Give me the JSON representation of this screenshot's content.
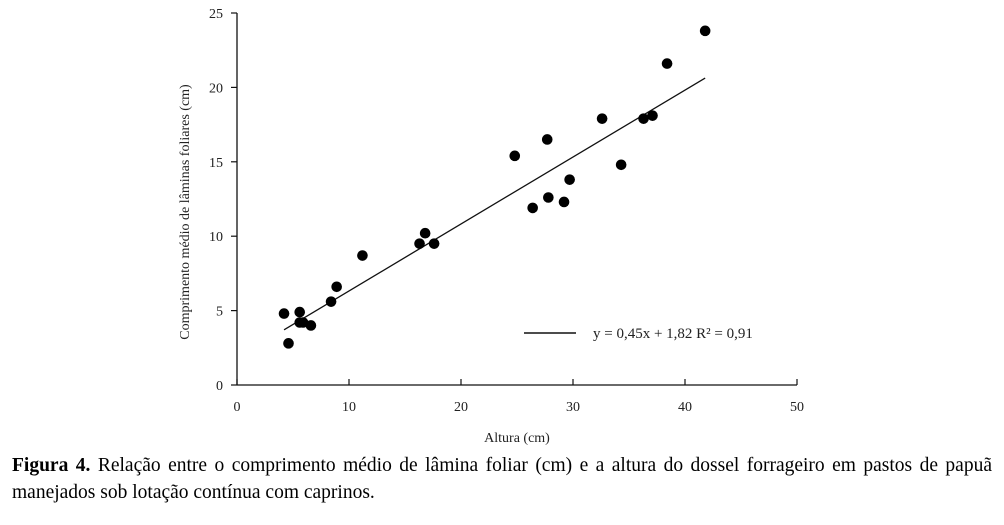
{
  "chart_data": {
    "type": "scatter",
    "xlabel": "Altura (cm)",
    "ylabel": "Comprimento médio de lâminas foliares (cm)",
    "xlim": [
      0,
      50
    ],
    "ylim": [
      0,
      25
    ],
    "xticks": [
      0,
      10,
      20,
      30,
      40,
      50
    ],
    "yticks": [
      0,
      5,
      10,
      15,
      20,
      25
    ],
    "grid": false,
    "legend_position": "bottom-right",
    "points": [
      {
        "x": 4.2,
        "y": 4.8
      },
      {
        "x": 4.6,
        "y": 2.8
      },
      {
        "x": 5.6,
        "y": 4.9
      },
      {
        "x": 5.6,
        "y": 4.2
      },
      {
        "x": 5.9,
        "y": 4.2
      },
      {
        "x": 6.6,
        "y": 4.0
      },
      {
        "x": 8.4,
        "y": 5.6
      },
      {
        "x": 8.9,
        "y": 6.6
      },
      {
        "x": 11.2,
        "y": 8.7
      },
      {
        "x": 16.3,
        "y": 9.5
      },
      {
        "x": 16.8,
        "y": 10.2
      },
      {
        "x": 17.6,
        "y": 9.5
      },
      {
        "x": 24.8,
        "y": 15.4
      },
      {
        "x": 26.4,
        "y": 11.9
      },
      {
        "x": 27.7,
        "y": 16.5
      },
      {
        "x": 27.8,
        "y": 12.6
      },
      {
        "x": 29.2,
        "y": 12.3
      },
      {
        "x": 29.7,
        "y": 13.8
      },
      {
        "x": 32.6,
        "y": 17.9
      },
      {
        "x": 34.3,
        "y": 14.8
      },
      {
        "x": 36.3,
        "y": 17.9
      },
      {
        "x": 37.1,
        "y": 18.1
      },
      {
        "x": 38.4,
        "y": 21.6
      },
      {
        "x": 41.8,
        "y": 23.8
      }
    ],
    "trendline": {
      "slope": 0.45,
      "intercept": 1.82,
      "x_range": [
        4.2,
        41.8
      ],
      "label": "y = 0,45x + 1,82 R² = 0,91"
    }
  },
  "caption": {
    "label": "Figura 4.",
    "text": " Relação entre o comprimento médio de lâmina foliar (cm) e a altura do dossel forrageiro em pastos de papuã manejados sob lotação contínua com caprinos."
  }
}
